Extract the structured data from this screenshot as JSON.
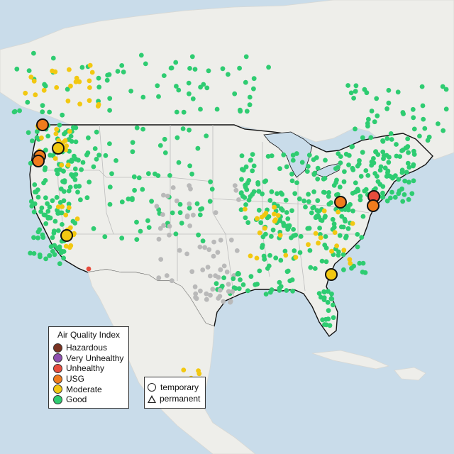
{
  "legend": {
    "title": "Air Quality Index",
    "categories": [
      {
        "label": "Hazardous",
        "color": "#7a3322"
      },
      {
        "label": "Very Unhealthy",
        "color": "#8e4fb0"
      },
      {
        "label": "Unhealthy",
        "color": "#e84c3d"
      },
      {
        "label": "USG",
        "color": "#f07c1d"
      },
      {
        "label": "Moderate",
        "color": "#f2c811"
      },
      {
        "label": "Good",
        "color": "#2ecc71"
      }
    ],
    "nodata_color": "#b9b9b9"
  },
  "type_legend": {
    "temporary": "temporary",
    "permanent": "permanent"
  },
  "map_colors": {
    "water": "#c9dcea",
    "land": "#eeeeea",
    "border": "#111111",
    "state_line": "#bdbdbd"
  }
}
